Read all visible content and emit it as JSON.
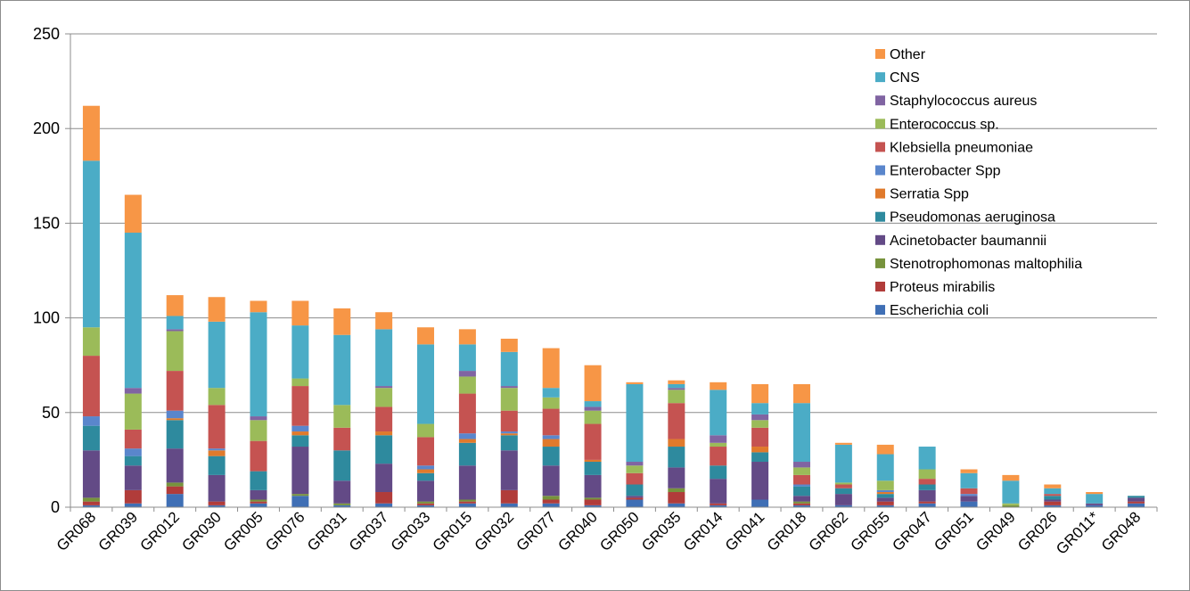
{
  "chart_data": {
    "type": "bar",
    "stacked": true,
    "categories": [
      "GR068",
      "GR039",
      "GR012",
      "GR030",
      "GR005",
      "GR076",
      "GR031",
      "GR037",
      "GR033",
      "GR015",
      "GR032",
      "GR077",
      "GR040",
      "GR050",
      "GR035",
      "GR014",
      "GR041",
      "GR018",
      "GR062",
      "GR055",
      "GR047",
      "GR051",
      "GR049",
      "GR026",
      "GR011*",
      "GR048"
    ],
    "ylim": [
      0,
      250
    ],
    "yticks": [
      0,
      50,
      100,
      150,
      200,
      250
    ],
    "grid": true,
    "legend_position": "top-right",
    "series": [
      {
        "name": "Escherichia coli",
        "color": "#3F6FB5",
        "values": [
          1,
          2,
          7,
          1,
          2,
          6,
          1,
          2,
          1,
          2,
          2,
          2,
          1,
          4,
          2,
          1,
          4,
          1,
          1,
          1,
          2,
          3,
          0,
          1,
          1,
          2
        ]
      },
      {
        "name": "Proteus mirabilis",
        "color": "#B13C3A",
        "values": [
          2,
          7,
          4,
          2,
          1,
          0,
          0,
          6,
          1,
          1,
          7,
          2,
          3,
          1,
          6,
          1,
          0,
          1,
          0,
          2,
          1,
          0,
          0,
          2,
          0,
          1
        ]
      },
      {
        "name": "Stenotrophomonas maltophilia",
        "color": "#77933C",
        "values": [
          2,
          0,
          2,
          0,
          1,
          1,
          1,
          0,
          1,
          1,
          0,
          2,
          1,
          0,
          2,
          0,
          0,
          1,
          0,
          0,
          0,
          0,
          1,
          0,
          0,
          0
        ]
      },
      {
        "name": "Acinetobacter baumannii",
        "color": "#634A86",
        "values": [
          25,
          13,
          18,
          14,
          5,
          25,
          12,
          15,
          11,
          18,
          21,
          16,
          12,
          1,
          11,
          13,
          20,
          3,
          6,
          2,
          6,
          3,
          0,
          1,
          1,
          2
        ]
      },
      {
        "name": "Pseudomonas aeruginosa",
        "color": "#2E8A9E",
        "values": [
          13,
          5,
          15,
          10,
          10,
          6,
          16,
          15,
          4,
          12,
          8,
          10,
          7,
          6,
          11,
          7,
          5,
          5,
          3,
          2,
          3,
          0,
          0,
          2,
          0,
          1
        ]
      },
      {
        "name": "Serratia Spp",
        "color": "#E07A2C",
        "values": [
          0,
          0,
          1,
          3,
          0,
          2,
          0,
          2,
          2,
          2,
          1,
          4,
          1,
          0,
          4,
          0,
          3,
          0,
          0,
          1,
          0,
          0,
          0,
          0,
          0,
          0
        ]
      },
      {
        "name": "Enterobacter Spp",
        "color": "#5A86CC",
        "values": [
          5,
          4,
          4,
          1,
          0,
          3,
          0,
          0,
          2,
          3,
          1,
          2,
          0,
          0,
          0,
          0,
          0,
          1,
          0,
          1,
          0,
          1,
          0,
          0,
          0,
          0
        ]
      },
      {
        "name": "Klebsiella pneumoniae",
        "color": "#C55351",
        "values": [
          32,
          10,
          21,
          23,
          16,
          21,
          12,
          13,
          15,
          21,
          11,
          14,
          19,
          6,
          19,
          10,
          10,
          5,
          2,
          0,
          3,
          3,
          0,
          1,
          0,
          0
        ]
      },
      {
        "name": "Enterococcus sp.",
        "color": "#9BBB59",
        "values": [
          15,
          19,
          21,
          9,
          11,
          4,
          12,
          10,
          7,
          9,
          12,
          6,
          7,
          4,
          7,
          2,
          4,
          4,
          1,
          5,
          5,
          0,
          1,
          0,
          0,
          0
        ]
      },
      {
        "name": "Staphylococcus aureus",
        "color": "#8064A2",
        "values": [
          0,
          3,
          1,
          0,
          2,
          0,
          0,
          1,
          0,
          3,
          1,
          0,
          2,
          2,
          1,
          4,
          3,
          3,
          0,
          0,
          0,
          0,
          0,
          0,
          0,
          0
        ]
      },
      {
        "name": "CNS",
        "color": "#4BACC6",
        "values": [
          88,
          82,
          7,
          35,
          55,
          28,
          37,
          30,
          42,
          14,
          18,
          5,
          3,
          41,
          2,
          24,
          6,
          31,
          20,
          14,
          12,
          8,
          12,
          3,
          5,
          0
        ]
      },
      {
        "name": "Other",
        "color": "#F79646",
        "values": [
          29,
          20,
          11,
          13,
          6,
          13,
          14,
          9,
          9,
          8,
          7,
          21,
          19,
          1,
          2,
          4,
          10,
          10,
          1,
          5,
          0,
          2,
          3,
          2,
          1,
          0
        ]
      }
    ]
  }
}
